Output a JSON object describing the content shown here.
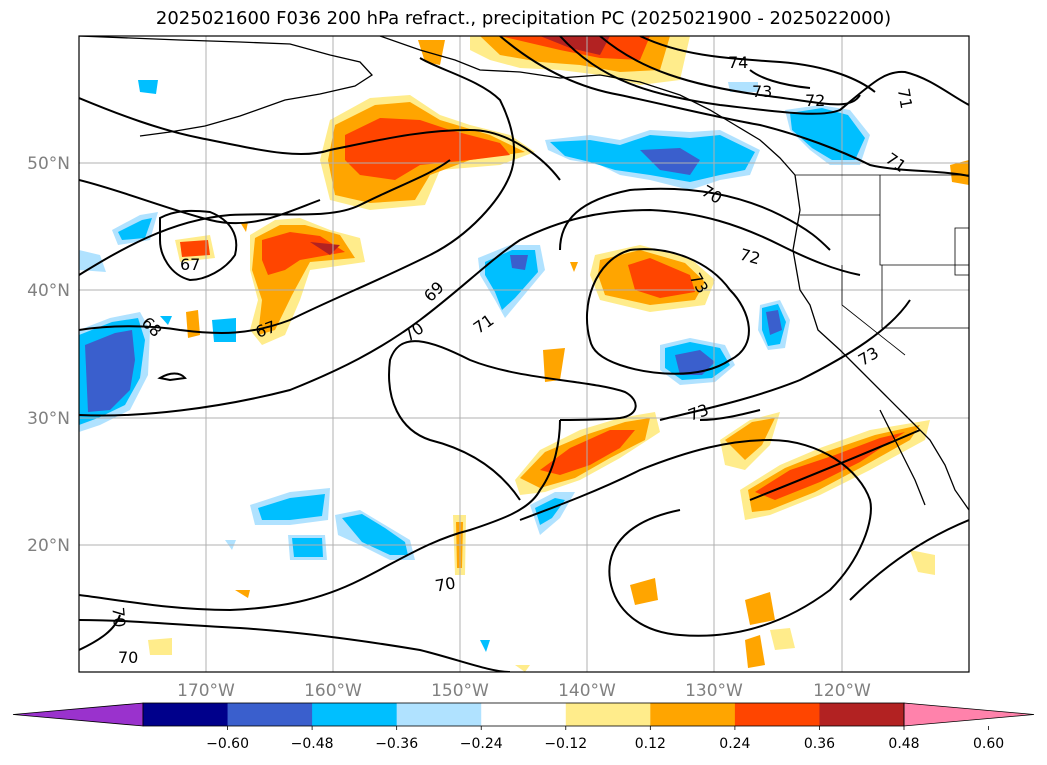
{
  "title": "2025021600 F036 200 hPa refract., precipitation PC (2025021900 - 2025022000)",
  "lat_labels": [
    "50°N",
    "40°N",
    "30°N",
    "20°N"
  ],
  "lon_labels": [
    "170°W",
    "160°W",
    "150°W",
    "140°W",
    "130°W",
    "120°W"
  ],
  "contour_labels": [
    "74",
    "73",
    "72",
    "71",
    "71",
    "70",
    "67",
    "69",
    "70",
    "71",
    "72",
    "73",
    "68",
    "67",
    "73",
    "73",
    "70",
    "70",
    "70"
  ],
  "colorbar": {
    "ticks": [
      "−0.60",
      "−0.48",
      "−0.36",
      "−0.24",
      "−0.12",
      "0.12",
      "0.24",
      "0.36",
      "0.48",
      "0.60"
    ],
    "colors": [
      "#9a32cd",
      "#00008b",
      "#3a5fcd",
      "#00bfff",
      "#b0e2ff",
      "#ffffff",
      "#ffec8b",
      "#ffa500",
      "#ff4500",
      "#b22222",
      "#ff82ab"
    ]
  }
}
